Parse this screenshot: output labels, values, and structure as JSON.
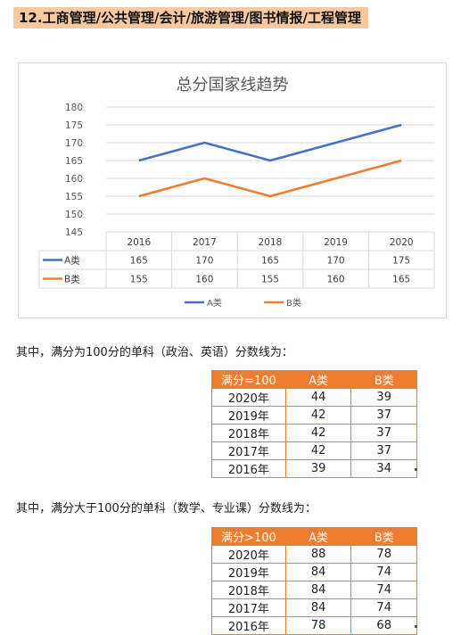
{
  "header": {
    "title": "12.工商管理/公共管理/会计/旅游管理/图书情报/工程管理"
  },
  "chart_data": {
    "type": "line",
    "title": "总分国家线趋势",
    "categories": [
      "2016",
      "2017",
      "2018",
      "2019",
      "2020"
    ],
    "series": [
      {
        "name": "A类",
        "values": [
          165,
          170,
          165,
          170,
          175
        ],
        "color": "#4472c4"
      },
      {
        "name": "B类",
        "values": [
          155,
          160,
          155,
          160,
          165
        ],
        "color": "#ed7d31"
      }
    ],
    "yticks": [
      "145",
      "150",
      "155",
      "160",
      "165",
      "170",
      "175",
      "180"
    ],
    "ylim": [
      145,
      180
    ],
    "grid": true,
    "legend": "bottom",
    "data_table": true
  },
  "section1": {
    "intro": "其中，满分为100分的单科（政治、英语）分数线为：",
    "headers": [
      "满分=100",
      "A类",
      "B类"
    ],
    "rows": [
      [
        "2020年",
        "44",
        "39"
      ],
      [
        "2019年",
        "42",
        "37"
      ],
      [
        "2018年",
        "42",
        "37"
      ],
      [
        "2017年",
        "42",
        "37"
      ],
      [
        "2016年",
        "39",
        "34"
      ]
    ]
  },
  "section2": {
    "intro": "其中，满分大于100分的单科（数学、专业课）分数线为：",
    "headers": [
      "满分>100",
      "A类",
      "B类"
    ],
    "rows": [
      [
        "2020年",
        "88",
        "78"
      ],
      [
        "2019年",
        "84",
        "74"
      ],
      [
        "2018年",
        "84",
        "74"
      ],
      [
        "2017年",
        "84",
        "74"
      ],
      [
        "2016年",
        "78",
        "68"
      ]
    ]
  }
}
